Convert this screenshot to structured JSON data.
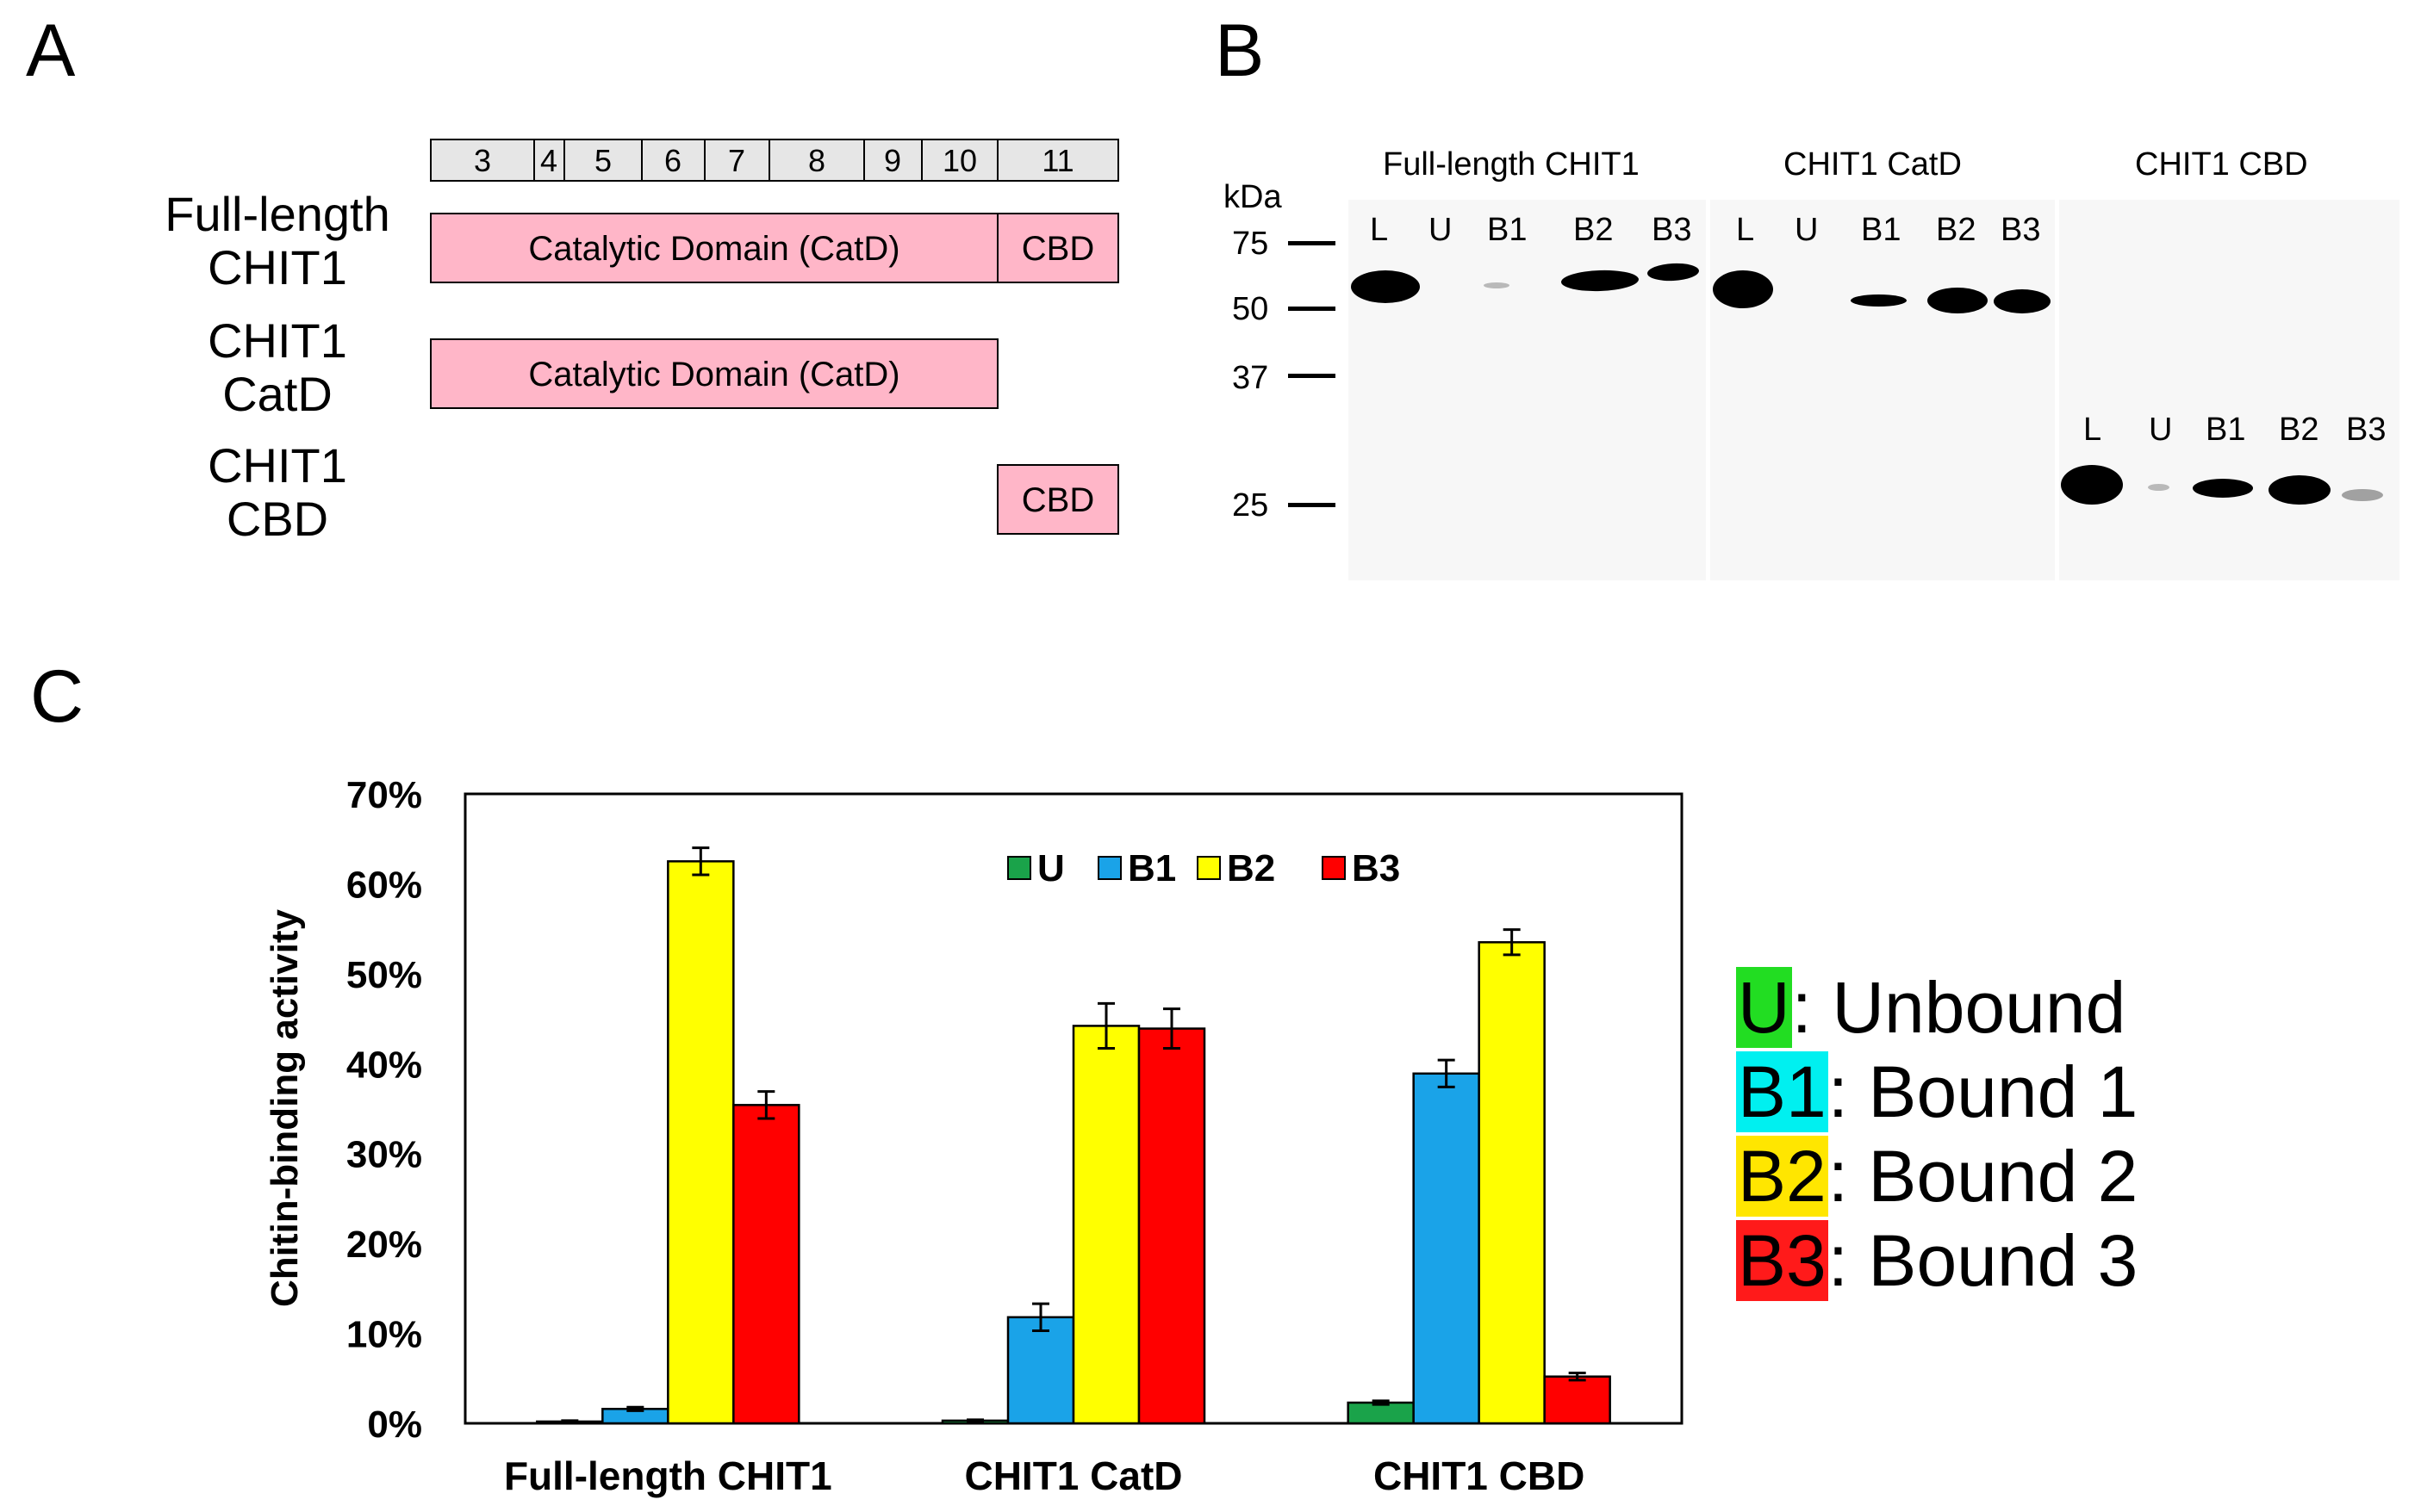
{
  "panels": {
    "a": "A",
    "b": "B",
    "c": "C"
  },
  "panel_a": {
    "exons": [
      "3",
      "4",
      "5",
      "6",
      "7",
      "8",
      "9",
      "10",
      "11"
    ],
    "constructs": [
      {
        "label_line1": "Full-length",
        "label_line2": "CHIT1",
        "domains": [
          "Catalytic Domain (CatD)",
          "CBD"
        ]
      },
      {
        "label_line1": "CHIT1",
        "label_line2": "CatD",
        "domains": [
          "Catalytic Domain (CatD)"
        ]
      },
      {
        "label_line1": "CHIT1",
        "label_line2": "CBD",
        "domains": [
          "CBD"
        ]
      }
    ],
    "domain_color": "#ffb6c8"
  },
  "panel_b": {
    "kda_unit": "kDa",
    "markers": [
      "75",
      "50",
      "37",
      "25"
    ],
    "blots": [
      {
        "title": "Full-length CHIT1",
        "lanes": [
          "L",
          "U",
          "B1",
          "B2",
          "B3"
        ]
      },
      {
        "title": "CHIT1 CatD",
        "lanes": [
          "L",
          "U",
          "B1",
          "B2",
          "B3"
        ]
      },
      {
        "title": "CHIT1 CBD",
        "lanes": [
          "L",
          "U",
          "B1",
          "B2",
          "B3"
        ]
      }
    ]
  },
  "chart_data": {
    "type": "bar",
    "categories": [
      "Full-length CHIT1",
      "CHIT1 CatD",
      "CHIT1 CBD"
    ],
    "ylabel": "Chitin-binding activity",
    "ylim": [
      0,
      70
    ],
    "yticks": [
      "0%",
      "10%",
      "20%",
      "30%",
      "40%",
      "50%",
      "60%",
      "70%"
    ],
    "legend_position": "top-center",
    "series": [
      {
        "name": "U",
        "color": "#1aa34a",
        "values": [
          0.2,
          0.3,
          2.3
        ],
        "errors": [
          0.1,
          0.1,
          0.2
        ]
      },
      {
        "name": "B1",
        "color": "#1aa3e8",
        "values": [
          1.6,
          11.8,
          38.9
        ],
        "errors": [
          0.2,
          1.5,
          1.5
        ]
      },
      {
        "name": "B2",
        "color": "#ffff00",
        "values": [
          62.5,
          44.2,
          53.5
        ],
        "errors": [
          1.5,
          2.5,
          1.4
        ]
      },
      {
        "name": "B3",
        "color": "#ff0000",
        "values": [
          35.4,
          43.9,
          5.2
        ],
        "errors": [
          1.5,
          2.2,
          0.4
        ]
      }
    ]
  },
  "legend_c": [
    {
      "code": "U",
      "text": ": Unbound",
      "color": "#22dd22"
    },
    {
      "code": "B1",
      "text": ": Bound 1",
      "color": "#00f0f0"
    },
    {
      "code": "B2",
      "text": ": Bound 2",
      "color": "#ffe600"
    },
    {
      "code": "B3",
      "text": ": Bound 3",
      "color": "#ff1a1a"
    }
  ]
}
